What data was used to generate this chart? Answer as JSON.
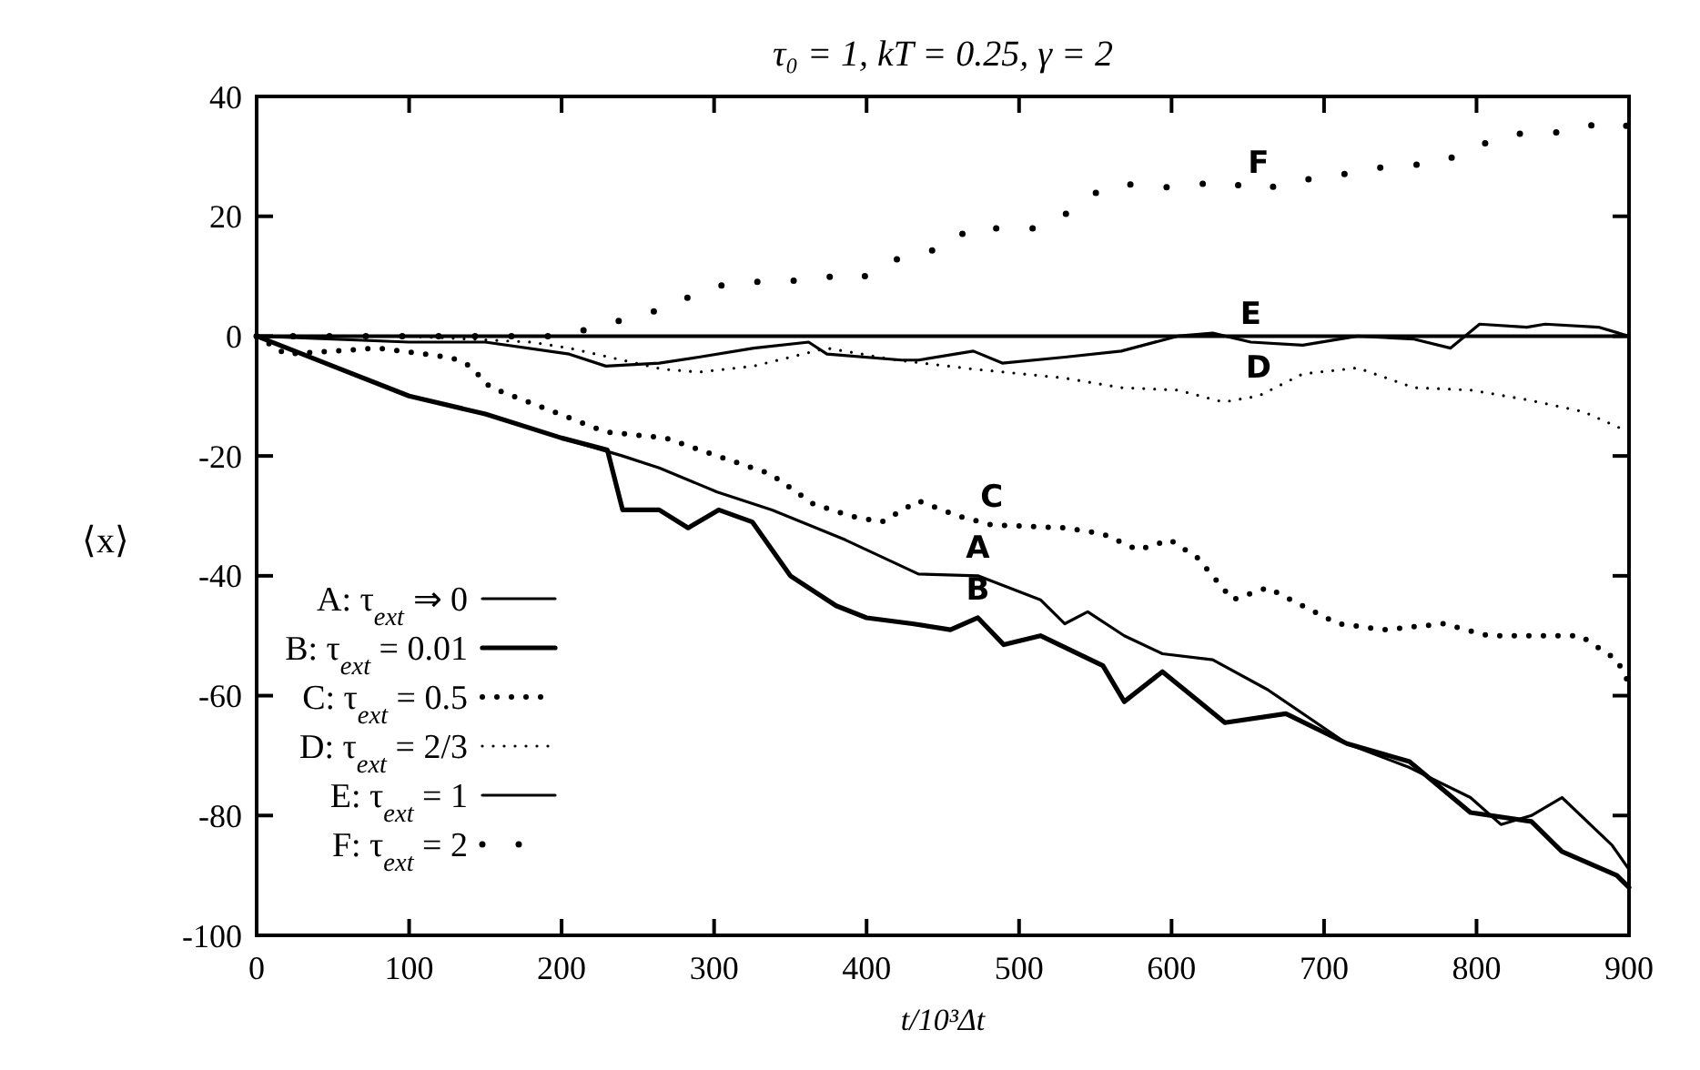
{
  "chart_data": {
    "type": "line",
    "title": "τ₀ = 1, kT = 0.25, γ = 2",
    "xlabel": "t/10³Δt",
    "ylabel": "⟨x⟩",
    "xlim": [
      0,
      900
    ],
    "xticks": [
      0,
      100,
      200,
      300,
      400,
      500,
      600,
      700,
      800,
      900
    ],
    "ylim": [
      -100,
      40
    ],
    "yticks": [
      -100,
      -80,
      -60,
      -40,
      -20,
      0,
      20,
      40
    ],
    "grid": false,
    "legend": "bottom left",
    "marker": "none",
    "ref_lines": [
      {
        "axis": "y",
        "value": 0,
        "color": "#000000",
        "line_style": "solid"
      }
    ],
    "series": [
      {
        "name": "A: τ$_{ext}$ ⇒ 0",
        "color": "#000000",
        "line_style": "solid",
        "x": [
          0,
          50,
          100,
          150,
          200,
          240,
          264,
          302,
          338,
          386,
          434,
          473,
          514,
          530,
          545,
          569,
          594,
          627,
          663,
          715,
          756,
          796,
          816,
          836,
          856,
          889,
          900
        ],
        "values": [
          0,
          -5,
          -10,
          -13,
          -17,
          -20,
          -22,
          -26,
          -29,
          -34,
          -39.7,
          -40,
          -44,
          -48,
          -46,
          -50,
          -53,
          -54,
          -59,
          -68,
          -72,
          -77,
          -81.5,
          -80,
          -77,
          -85,
          -89
        ]
      },
      {
        "name": "B: τ$_{ext}$ = 0.01",
        "color": "#000000",
        "line_style": "solid",
        "x": [
          0,
          50,
          100,
          150,
          200,
          230,
          240,
          264,
          283,
          303,
          325,
          350,
          380,
          400,
          430,
          455,
          473,
          490,
          514,
          555,
          569,
          594,
          635,
          675,
          715,
          756,
          796,
          836,
          856,
          892,
          900
        ],
        "values": [
          0,
          -5,
          -10,
          -13,
          -17,
          -19,
          -29,
          -29,
          -32,
          -29,
          -31,
          -40,
          -45,
          -47,
          -48,
          -49,
          -47,
          -51.5,
          -50,
          -55,
          -61,
          -56,
          -64.5,
          -63,
          -68,
          -71,
          -79.5,
          -81,
          -86,
          -90,
          -92
        ]
      },
      {
        "name": "C: τ$_{ext}$ = 0.5",
        "color": "#000000",
        "line_style": "dotted",
        "x": [
          0,
          19,
          80,
          128,
          140,
          153,
          229,
          268,
          309,
          337,
          365,
          389,
          410,
          434,
          460,
          482,
          530,
          555,
          578,
          599,
          617,
          640,
          663,
          709,
          740,
          778,
          808,
          868,
          892,
          900
        ],
        "values": [
          0,
          -3,
          -2,
          -3.6,
          -5,
          -8.5,
          -16,
          -17,
          -20.6,
          -23,
          -28,
          -30,
          -31,
          -27.5,
          -30,
          -31.5,
          -32,
          -33,
          -35.7,
          -34,
          -37,
          -44,
          -42,
          -48,
          -49,
          -48,
          -50,
          -50,
          -54,
          -58
        ]
      },
      {
        "name": "D: τ$_{ext}$ = 2/3",
        "color": "#000000",
        "line_style": "dotted",
        "x": [
          0,
          100,
          180,
          205,
          266,
          290,
          326,
          350,
          374,
          420,
          470,
          530,
          567,
          604,
          634,
          657,
          686,
          722,
          759,
          796,
          833,
          870,
          900
        ],
        "values": [
          0,
          0,
          -1,
          -2,
          -5.5,
          -6,
          -5,
          -3.5,
          -2,
          -4,
          -5.5,
          -7,
          -8.6,
          -9,
          -11,
          -10,
          -6.3,
          -5.3,
          -8.6,
          -9,
          -10.6,
          -12.6,
          -16
        ]
      },
      {
        "name": "E: τ$_{ext}$ = 1",
        "color": "#000000",
        "line_style": "solid",
        "x": [
          0,
          100,
          150,
          205,
          229,
          264,
          290,
          326,
          362,
          374,
          423,
          434,
          470,
          489,
          530,
          567,
          604,
          627,
          652,
          686,
          722,
          759,
          783,
          802,
          833,
          845,
          880,
          900
        ],
        "values": [
          0,
          -1,
          -1,
          -3,
          -5,
          -4.5,
          -3.5,
          -2,
          -1,
          -3,
          -4,
          -4,
          -2.5,
          -4.5,
          -3.5,
          -2.5,
          0,
          0.5,
          -1,
          -1.5,
          0,
          -0.5,
          -2,
          2,
          1.5,
          2,
          1.5,
          0
        ]
      },
      {
        "name": "F: τ$_{ext}$ = 2",
        "color": "#000000",
        "line_style": "dotted",
        "x": [
          0,
          100,
          200,
          249,
          270,
          292,
          315,
          345,
          372,
          395,
          414,
          435,
          456,
          466,
          489,
          509,
          530,
          551,
          567,
          591,
          611,
          633,
          657,
          681,
          703,
          732,
          751,
          775,
          796,
          820,
          841,
          863,
          884,
          900
        ],
        "values": [
          0,
          0,
          0,
          3.3,
          4.8,
          7.6,
          9.1,
          9,
          10,
          9.4,
          12.4,
          13.9,
          15,
          18,
          18,
          18,
          20.3,
          24,
          25.5,
          24.8,
          25,
          26,
          24.2,
          26,
          26.5,
          28,
          28.5,
          28.8,
          31.2,
          33.6,
          34,
          34,
          36,
          35
        ]
      }
    ],
    "annotations": [
      {
        "text": "A",
        "x": 473,
        "y": -40
      },
      {
        "text": "B",
        "x": 473,
        "y": -47
      },
      {
        "text": "C",
        "x": 482,
        "y": -31.5
      },
      {
        "text": "D",
        "x": 657,
        "y": -10
      },
      {
        "text": "E",
        "x": 652,
        "y": -1
      },
      {
        "text": "F",
        "x": 657,
        "y": 24.2
      }
    ]
  }
}
